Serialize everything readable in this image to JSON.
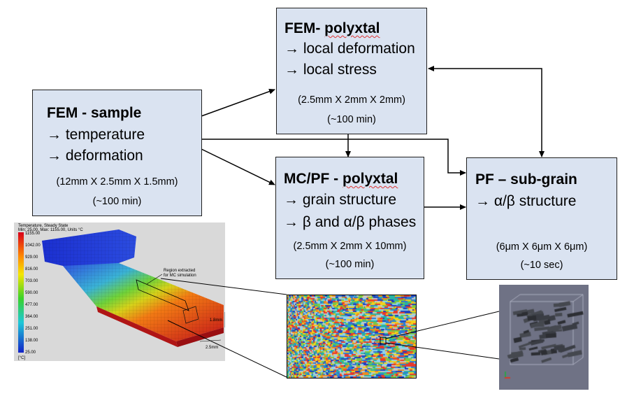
{
  "boxes": {
    "fem_sample": {
      "title_a": "FEM - sample",
      "line1": "→ temperature",
      "line2": "→ deformation",
      "dims": "(12mm X 2.5mm X 1.5mm)",
      "time": "(~100 min)"
    },
    "fem_polyxtal": {
      "title_a": "FEM- ",
      "title_b": "polyxtal",
      "line1": "→ local deformation",
      "line2": "→ local stress",
      "dims": "(2.5mm X 2mm X 2mm)",
      "time": "(~100 min)"
    },
    "mcpf_polyxtal": {
      "title_a": "MC/PF - ",
      "title_b": "polyxtal",
      "line1": "→ grain structure",
      "line2": "→ β and α/β phases",
      "dims": "(2.5mm X 2mm X 10mm)",
      "time": "(~100 min)"
    },
    "pf_subgrain": {
      "title_a": "PF – sub-grain",
      "line1": "→ α/β structure",
      "dims": "(6μm X 6μm X 6μm)",
      "time": "(~10 sec)"
    }
  },
  "fem_image": {
    "header1": "Temperature, Steady State",
    "header2": "Min: 25.00, Max: 1155.00, Units °C",
    "legend_values": [
      "1155.00",
      "1042.00",
      "929.00",
      "816.00",
      "703.00",
      "590.00",
      "477.00",
      "364.00",
      "251.00",
      "138.00",
      "25.00"
    ],
    "unit": "[°C]",
    "annotation": "Region extracted for MC simulation",
    "dim_height": "1.8mm",
    "dim_width": "2.5mm"
  },
  "colors": {
    "box_fill": "#dae3f1",
    "box_border": "#1f1f1f",
    "connector": "#000000"
  }
}
